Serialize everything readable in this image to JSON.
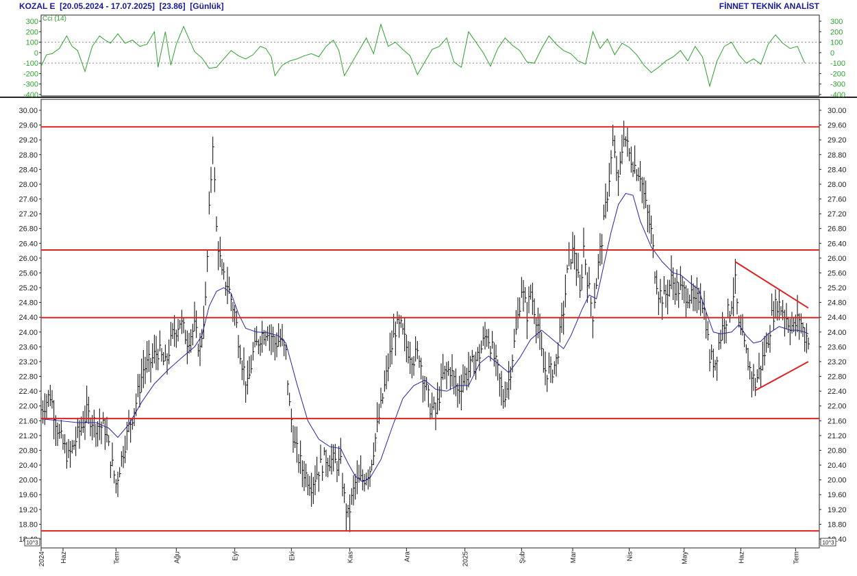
{
  "header": {
    "symbol": "KOZAL E",
    "period": "[20.05.2024 - 17.07.2025]",
    "last_price": "[23.86]",
    "interval": "[Günlük]",
    "vendor": "FİNNET TEKNİK ANALİST"
  },
  "indicator": {
    "label": "Cci (14)",
    "ylim": [
      -400,
      300
    ],
    "ticks": [
      "300",
      "200",
      "100",
      "0",
      "-100",
      "-200",
      "-300",
      "-400"
    ],
    "tick_values": [
      300,
      200,
      100,
      0,
      -100,
      -200,
      -300,
      -400
    ],
    "guide_levels": [
      100,
      -100
    ],
    "color": "#2ca02c"
  },
  "chart_data": {
    "type": "line",
    "title": "KOZAL E  [20.05.2024 - 17.07.2025]  [23.86]  [Günlük]",
    "ylim": [
      18.4,
      30.2
    ],
    "y_ticks": [
      "30.00",
      "29.60",
      "29.20",
      "28.80",
      "28.40",
      "28.00",
      "27.60",
      "27.20",
      "26.80",
      "26.40",
      "26.00",
      "25.60",
      "25.20",
      "24.80",
      "24.40",
      "24.00",
      "23.60",
      "23.20",
      "22.80",
      "22.40",
      "22.00",
      "21.60",
      "21.20",
      "20.80",
      "20.40",
      "20.00",
      "19.60",
      "19.20",
      "18.80",
      "18.40"
    ],
    "y_tick_values": [
      30.0,
      29.6,
      29.2,
      28.8,
      28.4,
      28.0,
      27.6,
      27.2,
      26.8,
      26.4,
      26.0,
      25.6,
      25.2,
      24.8,
      24.4,
      24.0,
      23.6,
      23.2,
      22.8,
      22.4,
      22.0,
      21.6,
      21.2,
      20.8,
      20.4,
      20.0,
      19.6,
      19.2,
      18.8,
      18.4
    ],
    "scale_note": "10^3",
    "x_ticks": [
      "2024",
      "Haz",
      "Tem",
      "Ağu",
      "Eyl",
      "Eki",
      "Kas",
      "Ara",
      "2025",
      "Şub",
      "Mar",
      "Nis",
      "May",
      "Haz",
      "Tem"
    ],
    "x_tick_days": [
      0,
      12,
      41,
      74,
      106,
      137,
      169,
      200,
      232,
      263,
      291,
      322,
      352,
      383,
      413
    ],
    "x_range_days": [
      0,
      423
    ],
    "horizontal_levels": [
      29.55,
      26.22,
      24.39,
      21.66,
      18.62
    ],
    "level_color": "#dd2222",
    "price_color": "#000000",
    "ma_color": "#2222aa",
    "triangle": {
      "upper": [
        [
          380,
          25.9
        ],
        [
          420,
          24.65
        ]
      ],
      "lower": [
        [
          391,
          22.42
        ],
        [
          420,
          23.2
        ]
      ],
      "color": "#dd2222"
    },
    "price_path": [
      [
        0,
        21.9
      ],
      [
        5,
        22.3
      ],
      [
        10,
        21.2
      ],
      [
        15,
        20.6
      ],
      [
        20,
        21.2
      ],
      [
        25,
        21.8
      ],
      [
        30,
        21.5
      ],
      [
        35,
        21.4
      ],
      [
        38,
        20.6
      ],
      [
        41,
        19.9
      ],
      [
        45,
        20.8
      ],
      [
        48,
        21.4
      ],
      [
        52,
        22.1
      ],
      [
        56,
        23.0
      ],
      [
        60,
        23.2
      ],
      [
        64,
        23.5
      ],
      [
        68,
        23.1
      ],
      [
        72,
        23.9
      ],
      [
        76,
        24.3
      ],
      [
        80,
        23.8
      ],
      [
        84,
        24.1
      ],
      [
        87,
        23.5
      ],
      [
        90,
        24.8
      ],
      [
        92,
        27.2
      ],
      [
        94,
        29.2
      ],
      [
        96,
        26.8
      ],
      [
        99,
        25.5
      ],
      [
        102,
        25.3
      ],
      [
        106,
        24.5
      ],
      [
        110,
        23.2
      ],
      [
        113,
        22.5
      ],
      [
        116,
        23.4
      ],
      [
        120,
        23.9
      ],
      [
        124,
        24.1
      ],
      [
        128,
        23.7
      ],
      [
        131,
        23.8
      ],
      [
        134,
        23.4
      ],
      [
        136,
        22.0
      ],
      [
        139,
        20.9
      ],
      [
        143,
        20.3
      ],
      [
        148,
        19.9
      ],
      [
        152,
        20.3
      ],
      [
        156,
        20.6
      ],
      [
        160,
        20.5
      ],
      [
        164,
        20.4
      ],
      [
        166,
        19.5
      ],
      [
        168,
        19.0
      ],
      [
        172,
        19.9
      ],
      [
        176,
        20.0
      ],
      [
        180,
        20.3
      ],
      [
        184,
        21.4
      ],
      [
        188,
        22.5
      ],
      [
        190,
        23.1
      ],
      [
        194,
        24.1
      ],
      [
        197,
        24.1
      ],
      [
        200,
        23.6
      ],
      [
        204,
        23.3
      ],
      [
        207,
        23.4
      ],
      [
        210,
        22.6
      ],
      [
        213,
        22.0
      ],
      [
        216,
        21.8
      ],
      [
        220,
        22.8
      ],
      [
        224,
        23.0
      ],
      [
        228,
        22.4
      ],
      [
        232,
        22.8
      ],
      [
        236,
        23.1
      ],
      [
        240,
        23.4
      ],
      [
        244,
        24.0
      ],
      [
        247,
        23.5
      ],
      [
        250,
        22.9
      ],
      [
        253,
        22.2
      ],
      [
        256,
        22.7
      ],
      [
        260,
        24.0
      ],
      [
        263,
        25.2
      ],
      [
        266,
        24.5
      ],
      [
        268,
        25.1
      ],
      [
        272,
        24.2
      ],
      [
        275,
        23.0
      ],
      [
        279,
        22.9
      ],
      [
        282,
        23.2
      ],
      [
        286,
        24.6
      ],
      [
        289,
        26.0
      ],
      [
        292,
        26.2
      ],
      [
        295,
        25.0
      ],
      [
        297,
        26.3
      ],
      [
        300,
        25.1
      ],
      [
        302,
        24.5
      ],
      [
        305,
        25.8
      ],
      [
        308,
        26.9
      ],
      [
        311,
        28.2
      ],
      [
        313,
        29.1
      ],
      [
        316,
        28.0
      ],
      [
        319,
        29.4
      ],
      [
        322,
        28.8
      ],
      [
        325,
        28.5
      ],
      [
        328,
        28.3
      ],
      [
        331,
        27.4
      ],
      [
        334,
        26.7
      ],
      [
        336,
        25.7
      ],
      [
        338,
        25.1
      ],
      [
        341,
        24.9
      ],
      [
        345,
        25.4
      ],
      [
        348,
        25.2
      ],
      [
        351,
        25.1
      ],
      [
        355,
        25.0
      ],
      [
        358,
        24.7
      ],
      [
        361,
        25.1
      ],
      [
        364,
        24.3
      ],
      [
        366,
        23.3
      ],
      [
        369,
        23.2
      ],
      [
        371,
        23.7
      ],
      [
        374,
        24.3
      ],
      [
        377,
        24.6
      ],
      [
        380,
        25.3
      ],
      [
        382,
        24.1
      ],
      [
        385,
        23.6
      ],
      [
        388,
        23.0
      ],
      [
        391,
        22.6
      ],
      [
        394,
        23.1
      ],
      [
        397,
        23.6
      ],
      [
        400,
        24.4
      ],
      [
        403,
        24.8
      ],
      [
        406,
        24.6
      ],
      [
        409,
        24.3
      ],
      [
        412,
        24.1
      ],
      [
        415,
        24.4
      ],
      [
        418,
        23.9
      ],
      [
        420,
        23.86
      ]
    ],
    "ma_path": [
      [
        0,
        21.65
      ],
      [
        10,
        21.6
      ],
      [
        20,
        21.55
      ],
      [
        30,
        21.55
      ],
      [
        37,
        21.4
      ],
      [
        42,
        21.15
      ],
      [
        48,
        21.5
      ],
      [
        55,
        22.1
      ],
      [
        62,
        22.6
      ],
      [
        70,
        23.0
      ],
      [
        78,
        23.35
      ],
      [
        84,
        23.6
      ],
      [
        88,
        23.9
      ],
      [
        92,
        24.7
      ],
      [
        96,
        25.1
      ],
      [
        100,
        25.2
      ],
      [
        104,
        25.05
      ],
      [
        108,
        24.5
      ],
      [
        112,
        24.1
      ],
      [
        118,
        24.0
      ],
      [
        124,
        23.98
      ],
      [
        130,
        23.9
      ],
      [
        134,
        23.7
      ],
      [
        140,
        22.6
      ],
      [
        146,
        21.6
      ],
      [
        152,
        21.1
      ],
      [
        158,
        20.9
      ],
      [
        164,
        20.85
      ],
      [
        168,
        20.45
      ],
      [
        172,
        20.1
      ],
      [
        176,
        19.95
      ],
      [
        180,
        20.05
      ],
      [
        186,
        20.55
      ],
      [
        192,
        21.4
      ],
      [
        198,
        22.2
      ],
      [
        204,
        22.55
      ],
      [
        210,
        22.7
      ],
      [
        216,
        22.45
      ],
      [
        222,
        22.4
      ],
      [
        228,
        22.55
      ],
      [
        234,
        22.55
      ],
      [
        240,
        23.15
      ],
      [
        245,
        23.35
      ],
      [
        250,
        23.15
      ],
      [
        256,
        22.9
      ],
      [
        262,
        23.3
      ],
      [
        268,
        23.8
      ],
      [
        274,
        24.05
      ],
      [
        280,
        23.8
      ],
      [
        286,
        23.55
      ],
      [
        290,
        23.9
      ],
      [
        296,
        24.6
      ],
      [
        300,
        25.0
      ],
      [
        304,
        24.9
      ],
      [
        308,
        25.8
      ],
      [
        312,
        26.7
      ],
      [
        316,
        27.45
      ],
      [
        320,
        27.75
      ],
      [
        324,
        27.7
      ],
      [
        328,
        27.0
      ],
      [
        334,
        26.3
      ],
      [
        340,
        25.9
      ],
      [
        346,
        25.6
      ],
      [
        350,
        25.55
      ],
      [
        356,
        25.3
      ],
      [
        360,
        25.15
      ],
      [
        364,
        24.55
      ],
      [
        368,
        24.0
      ],
      [
        372,
        23.95
      ],
      [
        378,
        24.0
      ],
      [
        382,
        24.2
      ],
      [
        386,
        23.9
      ],
      [
        390,
        23.7
      ],
      [
        394,
        23.75
      ],
      [
        398,
        23.95
      ],
      [
        404,
        24.15
      ],
      [
        410,
        24.05
      ],
      [
        414,
        24.05
      ],
      [
        418,
        24.0
      ],
      [
        420,
        23.95
      ]
    ],
    "cci_path": [
      [
        0,
        -130
      ],
      [
        3,
        -20
      ],
      [
        6,
        -10
      ],
      [
        10,
        40
      ],
      [
        14,
        160
      ],
      [
        17,
        60
      ],
      [
        20,
        20
      ],
      [
        24,
        -180
      ],
      [
        28,
        60
      ],
      [
        32,
        160
      ],
      [
        35,
        120
      ],
      [
        38,
        90
      ],
      [
        42,
        180
      ],
      [
        46,
        90
      ],
      [
        50,
        120
      ],
      [
        54,
        60
      ],
      [
        58,
        80
      ],
      [
        62,
        200
      ],
      [
        64,
        -140
      ],
      [
        68,
        200
      ],
      [
        71,
        -120
      ],
      [
        74,
        80
      ],
      [
        78,
        250
      ],
      [
        81,
        130
      ],
      [
        84,
        10
      ],
      [
        88,
        -50
      ],
      [
        92,
        -150
      ],
      [
        96,
        -140
      ],
      [
        100,
        -60
      ],
      [
        104,
        20
      ],
      [
        108,
        -30
      ],
      [
        112,
        -60
      ],
      [
        116,
        -20
      ],
      [
        120,
        60
      ],
      [
        123,
        40
      ],
      [
        126,
        -40
      ],
      [
        128,
        -220
      ],
      [
        132,
        -120
      ],
      [
        136,
        -80
      ],
      [
        140,
        -60
      ],
      [
        144,
        -30
      ],
      [
        148,
        -10
      ],
      [
        152,
        -40
      ],
      [
        156,
        60
      ],
      [
        160,
        120
      ],
      [
        163,
        20
      ],
      [
        166,
        -220
      ],
      [
        170,
        -100
      ],
      [
        174,
        20
      ],
      [
        178,
        140
      ],
      [
        182,
        -10
      ],
      [
        186,
        270
      ],
      [
        190,
        60
      ],
      [
        194,
        100
      ],
      [
        198,
        30
      ],
      [
        202,
        -30
      ],
      [
        206,
        -210
      ],
      [
        210,
        -90
      ],
      [
        214,
        30
      ],
      [
        218,
        60
      ],
      [
        222,
        140
      ],
      [
        226,
        -90
      ],
      [
        230,
        -140
      ],
      [
        234,
        200
      ],
      [
        238,
        100
      ],
      [
        242,
        0
      ],
      [
        246,
        -130
      ],
      [
        250,
        40
      ],
      [
        254,
        140
      ],
      [
        258,
        70
      ],
      [
        262,
        20
      ],
      [
        266,
        -90
      ],
      [
        270,
        -100
      ],
      [
        274,
        40
      ],
      [
        278,
        160
      ],
      [
        282,
        80
      ],
      [
        286,
        20
      ],
      [
        290,
        -10
      ],
      [
        294,
        -80
      ],
      [
        298,
        -110
      ],
      [
        302,
        200
      ],
      [
        306,
        40
      ],
      [
        310,
        130
      ],
      [
        314,
        -20
      ],
      [
        318,
        90
      ],
      [
        322,
        50
      ],
      [
        326,
        -20
      ],
      [
        330,
        -120
      ],
      [
        334,
        -190
      ],
      [
        338,
        -140
      ],
      [
        342,
        -80
      ],
      [
        346,
        -40
      ],
      [
        350,
        20
      ],
      [
        354,
        -80
      ],
      [
        358,
        60
      ],
      [
        362,
        -40
      ],
      [
        366,
        -320
      ],
      [
        370,
        -80
      ],
      [
        374,
        60
      ],
      [
        378,
        100
      ],
      [
        382,
        -20
      ],
      [
        386,
        -100
      ],
      [
        390,
        -60
      ],
      [
        394,
        -110
      ],
      [
        398,
        80
      ],
      [
        402,
        170
      ],
      [
        406,
        90
      ],
      [
        410,
        40
      ],
      [
        414,
        60
      ],
      [
        418,
        -100
      ]
    ]
  }
}
